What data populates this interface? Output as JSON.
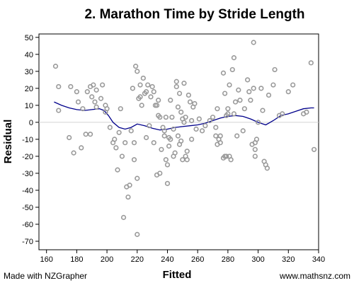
{
  "header": {
    "title": "2. Marathon Time by Stride Length"
  },
  "footer": {
    "left": "Made with NZGrapher",
    "right": "www.mathsnz.com"
  },
  "chart_data": {
    "type": "scatter",
    "title": "2. Marathon Time by Stride Length",
    "xlabel": "Fitted",
    "ylabel": "Residual",
    "xlim": [
      155,
      340
    ],
    "ylim": [
      -75,
      52
    ],
    "xticks": [
      160,
      180,
      200,
      220,
      240,
      260,
      280,
      300,
      320,
      340
    ],
    "yticks": [
      50,
      40,
      30,
      20,
      10,
      0,
      -10,
      -20,
      -30,
      -40,
      -50,
      -60,
      -70
    ],
    "zero_line": true,
    "grid": false,
    "colors": {
      "points": "#999999",
      "trend": "#00008b",
      "zero_line": "#d3d3d3"
    },
    "points": [
      [
        166,
        33
      ],
      [
        168,
        7
      ],
      [
        168,
        21
      ],
      [
        175,
        -9
      ],
      [
        176,
        21
      ],
      [
        178,
        -18
      ],
      [
        180,
        18
      ],
      [
        181,
        12
      ],
      [
        183,
        -15
      ],
      [
        184,
        8
      ],
      [
        186,
        -7
      ],
      [
        187,
        18
      ],
      [
        189,
        -7
      ],
      [
        189,
        21
      ],
      [
        190,
        15
      ],
      [
        191,
        22
      ],
      [
        192,
        12
      ],
      [
        193,
        19
      ],
      [
        193,
        9
      ],
      [
        196,
        14
      ],
      [
        197,
        22
      ],
      [
        199,
        10
      ],
      [
        199,
        6
      ],
      [
        200,
        8
      ],
      [
        202,
        -3
      ],
      [
        204,
        -12
      ],
      [
        205,
        -10
      ],
      [
        206,
        -15
      ],
      [
        207,
        -28
      ],
      [
        208,
        -6
      ],
      [
        209,
        8
      ],
      [
        210,
        -20
      ],
      [
        211,
        -56
      ],
      [
        212,
        -12
      ],
      [
        213,
        -38
      ],
      [
        214,
        -44
      ],
      [
        215,
        -37
      ],
      [
        216,
        -5
      ],
      [
        217,
        20
      ],
      [
        218,
        -12
      ],
      [
        218,
        -22
      ],
      [
        219,
        33
      ],
      [
        220,
        30
      ],
      [
        220,
        -33
      ],
      [
        220,
        -66
      ],
      [
        221,
        14
      ],
      [
        222,
        22
      ],
      [
        222,
        15
      ],
      [
        223,
        10
      ],
      [
        224,
        26
      ],
      [
        225,
        17
      ],
      [
        226,
        18
      ],
      [
        226,
        -9
      ],
      [
        227,
        22
      ],
      [
        228,
        -2
      ],
      [
        229,
        15
      ],
      [
        230,
        21
      ],
      [
        231,
        -12
      ],
      [
        231,
        18
      ],
      [
        232,
        10
      ],
      [
        233,
        10
      ],
      [
        233,
        -31
      ],
      [
        234,
        4
      ],
      [
        234,
        13
      ],
      [
        235,
        3
      ],
      [
        235,
        -30
      ],
      [
        236,
        -16
      ],
      [
        237,
        -3
      ],
      [
        238,
        -8
      ],
      [
        238,
        -5
      ],
      [
        239,
        3
      ],
      [
        239,
        -22
      ],
      [
        240,
        -25
      ],
      [
        240,
        -36
      ],
      [
        241,
        -9
      ],
      [
        241,
        -14
      ],
      [
        242,
        -10
      ],
      [
        242,
        13
      ],
      [
        243,
        3
      ],
      [
        244,
        -4
      ],
      [
        244,
        -20
      ],
      [
        245,
        -18
      ],
      [
        246,
        24
      ],
      [
        246,
        21
      ],
      [
        247,
        9
      ],
      [
        247,
        -8
      ],
      [
        248,
        17
      ],
      [
        248,
        -13
      ],
      [
        249,
        6
      ],
      [
        249,
        -11
      ],
      [
        250,
        2
      ],
      [
        250,
        -22
      ],
      [
        251,
        23
      ],
      [
        251,
        0
      ],
      [
        252,
        3
      ],
      [
        252,
        -20
      ],
      [
        253,
        -22
      ],
      [
        253,
        -17
      ],
      [
        254,
        16
      ],
      [
        255,
        12
      ],
      [
        256,
        1
      ],
      [
        256,
        -10
      ],
      [
        257,
        9
      ],
      [
        258,
        11
      ],
      [
        259,
        -4
      ],
      [
        261,
        2
      ],
      [
        263,
        -5
      ],
      [
        265,
        -2
      ],
      [
        268,
        1
      ],
      [
        270,
        3
      ],
      [
        272,
        -8
      ],
      [
        272,
        -3
      ],
      [
        273,
        -13
      ],
      [
        273,
        8
      ],
      [
        274,
        -10
      ],
      [
        275,
        -8
      ],
      [
        275,
        -12
      ],
      [
        277,
        29
      ],
      [
        277,
        -21
      ],
      [
        278,
        -20
      ],
      [
        278,
        17
      ],
      [
        279,
        -20
      ],
      [
        279,
        4
      ],
      [
        280,
        5
      ],
      [
        280,
        8
      ],
      [
        281,
        -20
      ],
      [
        281,
        22
      ],
      [
        282,
        -22
      ],
      [
        283,
        31
      ],
      [
        284,
        38
      ],
      [
        284,
        5
      ],
      [
        285,
        12
      ],
      [
        286,
        -8
      ],
      [
        287,
        19
      ],
      [
        288,
        13
      ],
      [
        290,
        -5
      ],
      [
        291,
        8
      ],
      [
        293,
        25
      ],
      [
        294,
        18
      ],
      [
        295,
        13
      ],
      [
        296,
        -13
      ],
      [
        297,
        47
      ],
      [
        297,
        20
      ],
      [
        298,
        -20
      ],
      [
        298,
        -16
      ],
      [
        298,
        -12
      ],
      [
        299,
        -10
      ],
      [
        300,
        0
      ],
      [
        302,
        20
      ],
      [
        303,
        7
      ],
      [
        304,
        -23
      ],
      [
        305,
        -25
      ],
      [
        306,
        -27
      ],
      [
        307,
        16
      ],
      [
        310,
        22
      ],
      [
        311,
        31
      ],
      [
        314,
        4
      ],
      [
        316,
        5
      ],
      [
        320,
        18
      ],
      [
        323,
        22
      ],
      [
        330,
        5
      ],
      [
        332,
        6
      ],
      [
        335,
        35
      ],
      [
        337,
        -16
      ]
    ],
    "trend": [
      [
        165,
        12
      ],
      [
        170,
        10
      ],
      [
        175,
        8.5
      ],
      [
        180,
        7.5
      ],
      [
        185,
        7
      ],
      [
        190,
        7.5
      ],
      [
        195,
        8
      ],
      [
        198,
        7
      ],
      [
        201,
        4
      ],
      [
        204,
        0
      ],
      [
        208,
        -3
      ],
      [
        212,
        -4
      ],
      [
        216,
        -3
      ],
      [
        220,
        -1
      ],
      [
        225,
        -2
      ],
      [
        230,
        -3.5
      ],
      [
        235,
        -4.5
      ],
      [
        240,
        -4
      ],
      [
        245,
        -3
      ],
      [
        250,
        -2.5
      ],
      [
        255,
        -2
      ],
      [
        260,
        -1.5
      ],
      [
        265,
        -0.5
      ],
      [
        270,
        1
      ],
      [
        275,
        2.5
      ],
      [
        280,
        3.5
      ],
      [
        285,
        4
      ],
      [
        290,
        3.5
      ],
      [
        295,
        2
      ],
      [
        300,
        0
      ],
      [
        305,
        -1.5
      ],
      [
        310,
        1
      ],
      [
        315,
        4
      ],
      [
        320,
        5
      ],
      [
        325,
        6.5
      ],
      [
        330,
        8
      ],
      [
        335,
        8.5
      ],
      [
        337,
        8.5
      ]
    ]
  }
}
